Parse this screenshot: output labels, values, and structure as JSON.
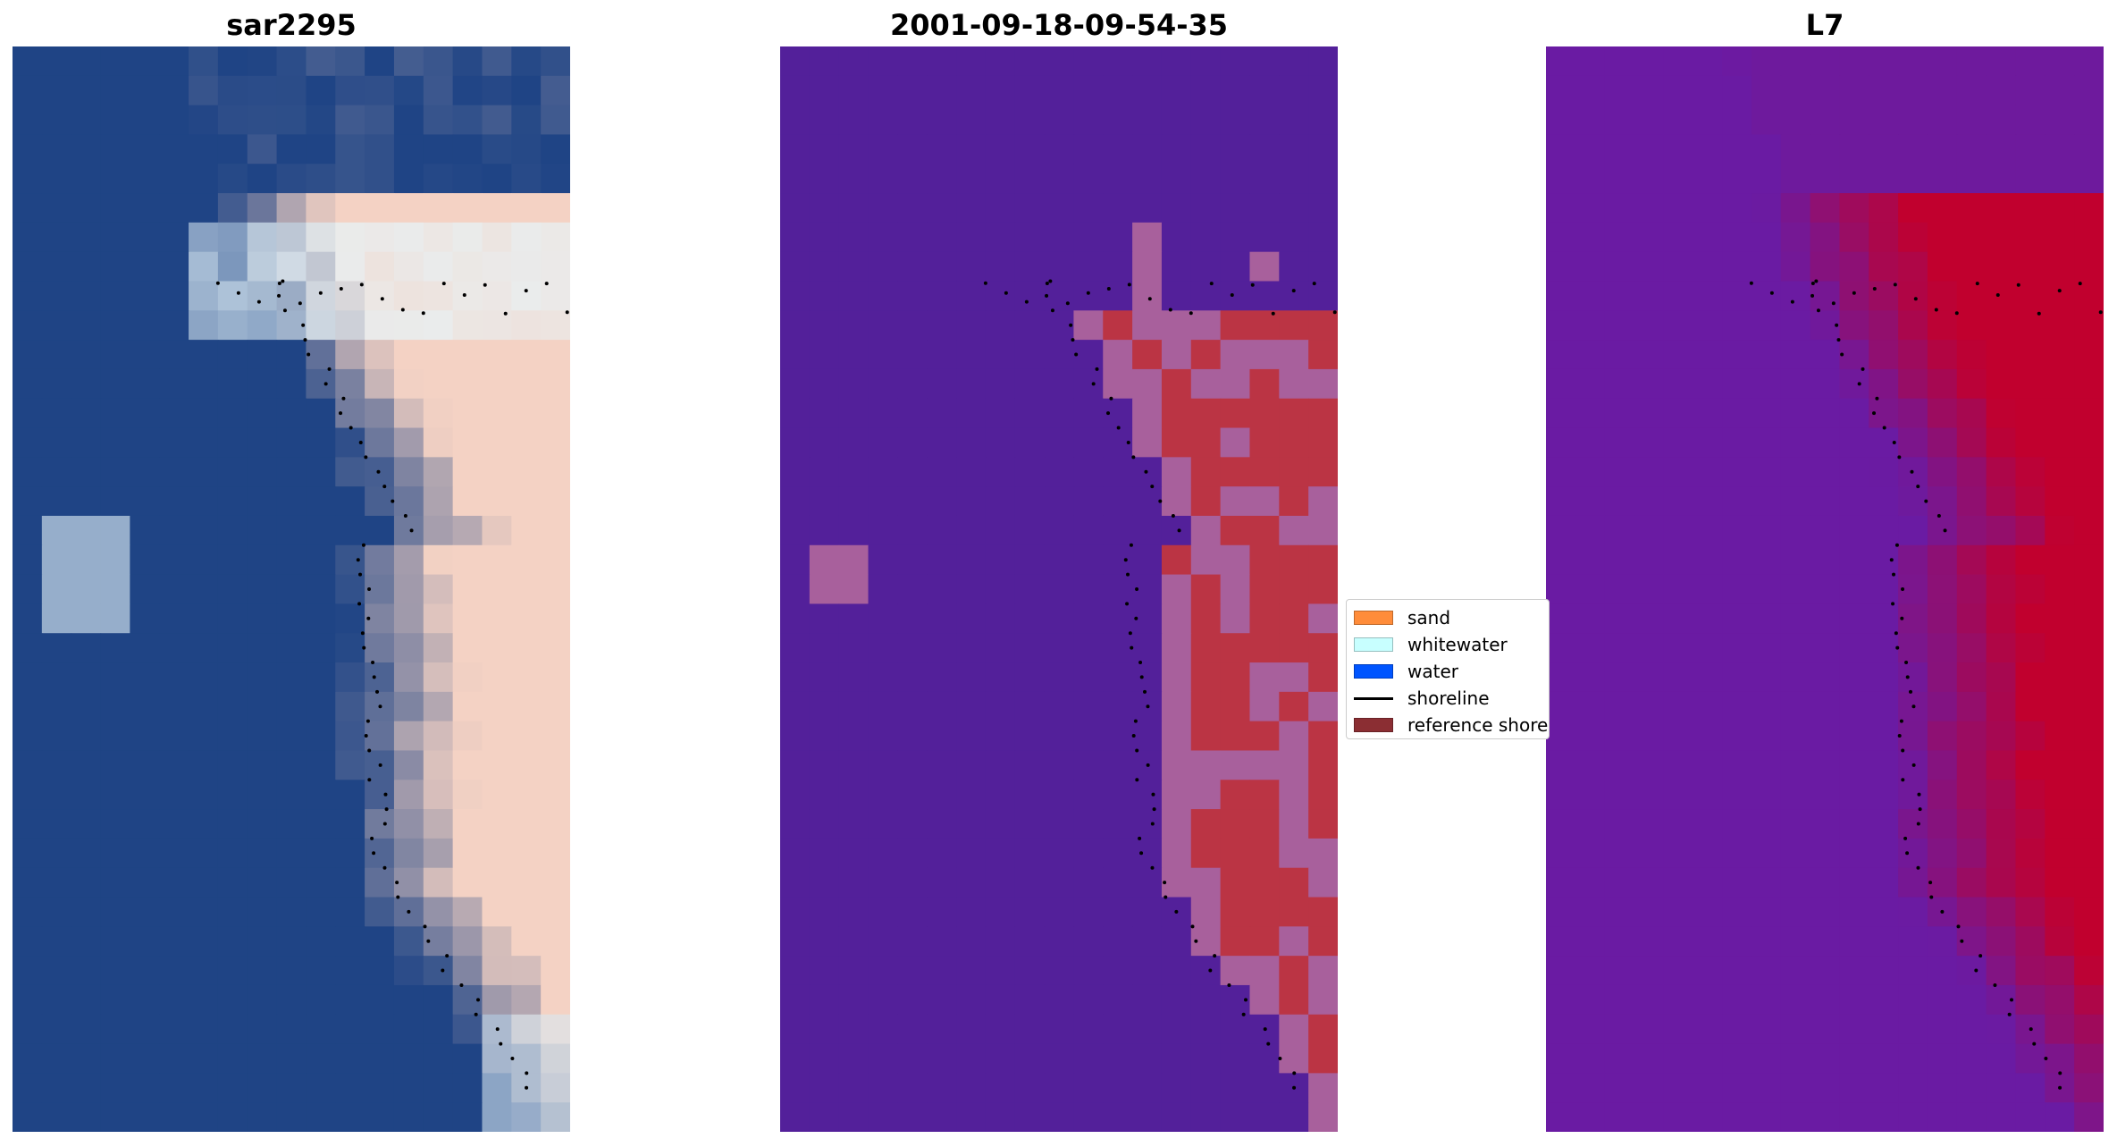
{
  "panels": [
    {
      "title": "sar2295",
      "kind": "rgb"
    },
    {
      "title": "2001-09-18-09-54-35",
      "kind": "classification"
    },
    {
      "title": "L7",
      "kind": "index"
    }
  ],
  "legend": {
    "items": [
      {
        "label": "sand",
        "color": "#ff8c3a",
        "type": "patch"
      },
      {
        "label": "whitewater",
        "color": "#c8ffff",
        "type": "patch"
      },
      {
        "label": "water",
        "color": "#0055ff",
        "type": "patch"
      },
      {
        "label": "shoreline",
        "color": "#000000",
        "type": "line"
      },
      {
        "label": "reference shoreline",
        "color": "#8b2e33",
        "type": "patch"
      }
    ]
  },
  "colors": {
    "classification_water": "#53209a",
    "classification_sand": "#bb3444",
    "classification_edge": "#a8609c",
    "index_low": "#6a1ba3",
    "index_high": "#c1002e",
    "rgb_water": "#1f4485",
    "rgb_sand": "#f4d2c4"
  }
}
